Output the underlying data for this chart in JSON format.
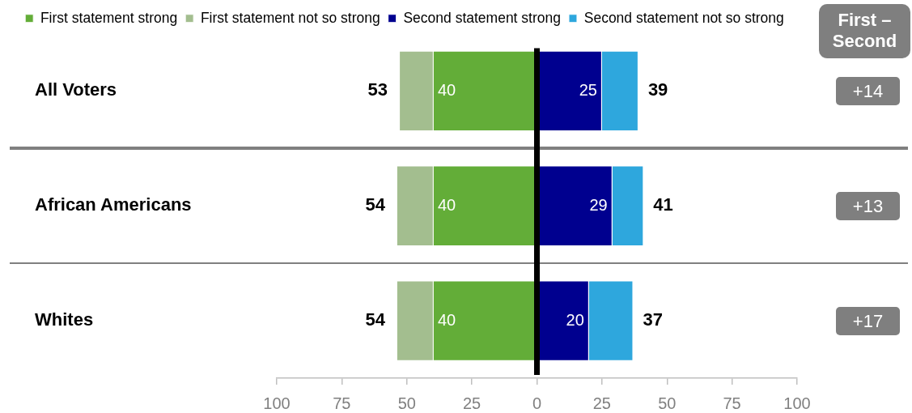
{
  "chart_data": {
    "type": "bar",
    "orientation": "horizontal",
    "stacked": true,
    "categories": [
      "All Voters",
      "African Americans",
      "Whites"
    ],
    "series": [
      {
        "name": "First statement strong",
        "color": "#63ad38",
        "values": [
          -40,
          -40,
          -40
        ]
      },
      {
        "name": "First statement not so strong",
        "color": "#a3be8f",
        "values": [
          -13,
          -14,
          -14
        ]
      },
      {
        "name": "Second statement strong",
        "color": "#00008f",
        "values": [
          25,
          29,
          20
        ]
      },
      {
        "name": "Second statement not so strong",
        "color": "#2ea7dd",
        "values": [
          14,
          12,
          17
        ]
      }
    ],
    "xlim": [
      -100,
      100
    ],
    "xticks": [
      {
        "value": -100,
        "label": "100"
      },
      {
        "value": -75,
        "label": "75"
      },
      {
        "value": -50,
        "label": "50"
      },
      {
        "value": -25,
        "label": "25"
      },
      0,
      25,
      50,
      75,
      100
    ],
    "ref_lines": [
      {
        "axis": "x",
        "value": 0,
        "color": "#000000"
      }
    ],
    "annotations": [
      {
        "text": "53",
        "x": -53,
        "y": "All Voters"
      },
      {
        "text": "40",
        "x": -40,
        "y": "All Voters"
      },
      {
        "text": "25",
        "x": 25,
        "y": "All Voters"
      },
      {
        "text": "39",
        "x": 39,
        "y": "All Voters"
      },
      {
        "text": "54",
        "x": -54,
        "y": "African Americans"
      },
      {
        "text": "40",
        "x": -40,
        "y": "African Americans"
      },
      {
        "text": "29",
        "x": 29,
        "y": "African Americans"
      },
      {
        "text": "41",
        "x": 41,
        "y": "African Americans"
      },
      {
        "text": "54",
        "x": -54,
        "y": "Whites"
      },
      {
        "text": "40",
        "x": -40,
        "y": "Whites"
      },
      {
        "text": "20",
        "x": 20,
        "y": "Whites"
      },
      {
        "text": "37",
        "x": 37,
        "y": "Whites"
      },
      "First – Second",
      "+14",
      "+13",
      "+17"
    ],
    "legend": "top"
  }
}
